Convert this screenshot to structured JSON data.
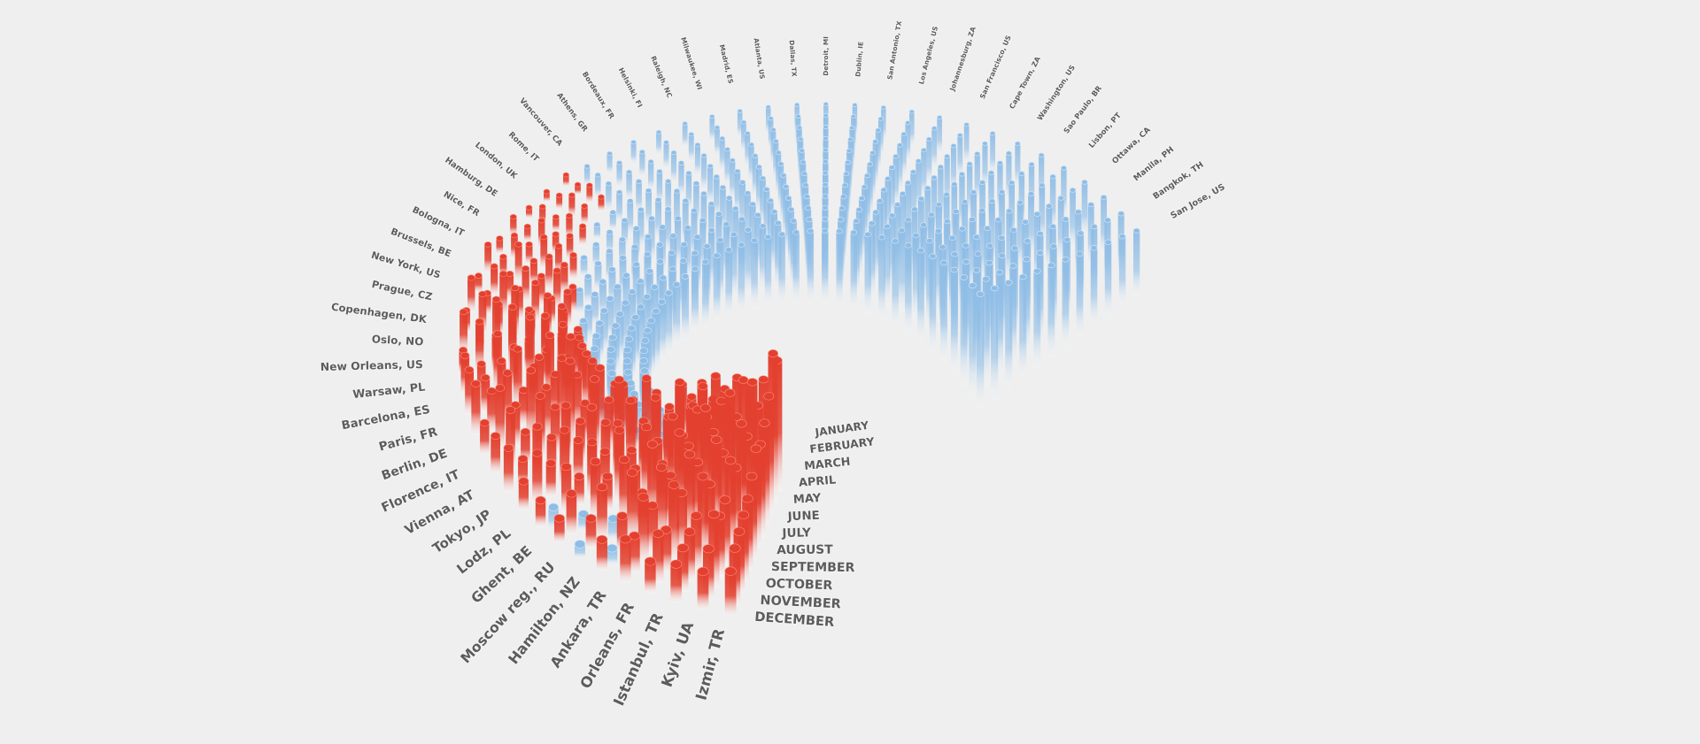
{
  "chart_data": {
    "type": "radial_bar3d",
    "cities": [
      "Izmir, TR",
      "Kyiv, UA",
      "Istanbul, TR",
      "Orleans, FR",
      "Ankara, TR",
      "Hamilton, NZ",
      "Moscow reg., RU",
      "Ghent, BE",
      "Lodz, PL",
      "Tokyo, JP",
      "Vienna, AT",
      "Florence, IT",
      "Berlin, DE",
      "Paris, FR",
      "Barcelona, ES",
      "Warsaw, PL",
      "New Orleans, US",
      "Oslo, NO",
      "Copenhagen, DK",
      "Prague, CZ",
      "New York, US",
      "Brussels, BE",
      "Bologna, IT",
      "Nice, FR",
      "Hamburg, DE",
      "London, UK",
      "Rome, IT",
      "Vancouver, CA",
      "Athens, GR",
      "Bordeaux, FR",
      "Helsinki, FI",
      "Raleigh, NC",
      "Milwaukee, WI",
      "Madrid, ES",
      "Atlanta, US",
      "Dallas, TX",
      "Detroit, MI",
      "Dublin, IE",
      "San Antonio, TX",
      "Los Angeles, US",
      "Johannesburg, ZA",
      "San Francisco, US",
      "Cape Town, ZA",
      "Washington, US",
      "Sao Paulo, BR",
      "Lisbon, PT",
      "Ottawa, CA",
      "Manila, PH",
      "Bangkok, TH",
      "San Jose, US"
    ],
    "months": [
      "JANUARY",
      "FEBRUARY",
      "MARCH",
      "APRIL",
      "MAY",
      "JUNE",
      "JULY",
      "AUGUST",
      "SEPTEMBER",
      "OCTOBER",
      "NOVEMBER",
      "DECEMBER"
    ],
    "values": [
      [
        44,
        50,
        38,
        32,
        28,
        30,
        24,
        20,
        18,
        16,
        14,
        10
      ],
      [
        36,
        30,
        42,
        26,
        34,
        22,
        28,
        18,
        16,
        20,
        12,
        8
      ],
      [
        30,
        38,
        28,
        40,
        22,
        30,
        18,
        24,
        14,
        12,
        10,
        8
      ],
      [
        34,
        26,
        32,
        24,
        36,
        20,
        26,
        16,
        22,
        10,
        12,
        6
      ],
      [
        28,
        36,
        24,
        30,
        20,
        28,
        16,
        22,
        12,
        18,
        8,
        10
      ],
      [
        22,
        30,
        26,
        18,
        28,
        14,
        24,
        10,
        20,
        8,
        -6,
        6
      ],
      [
        26,
        20,
        32,
        22,
        16,
        24,
        12,
        18,
        -8,
        14,
        6,
        -5
      ],
      [
        18,
        24,
        16,
        26,
        20,
        12,
        22,
        8,
        16,
        -6,
        10,
        4
      ],
      [
        20,
        14,
        22,
        12,
        24,
        18,
        10,
        16,
        6,
        12,
        -8,
        5
      ],
      [
        -8,
        -6,
        24,
        18,
        28,
        14,
        22,
        12,
        18,
        8,
        14,
        6
      ],
      [
        -10,
        -8,
        -6,
        20,
        16,
        26,
        12,
        20,
        10,
        16,
        6,
        12
      ],
      [
        -12,
        -10,
        -8,
        16,
        24,
        12,
        30,
        14,
        20,
        8,
        18,
        10
      ],
      [
        -14,
        -12,
        -10,
        -8,
        22,
        18,
        26,
        16,
        24,
        12,
        20,
        8
      ],
      [
        -16,
        -14,
        -12,
        -10,
        20,
        28,
        14,
        22,
        10,
        18,
        12,
        16
      ],
      [
        -18,
        -16,
        -14,
        -12,
        18,
        14,
        24,
        12,
        20,
        16,
        10,
        14
      ],
      [
        -20,
        -18,
        -16,
        -12,
        16,
        22,
        12,
        26,
        14,
        20,
        8,
        12
      ],
      [
        -22,
        -20,
        -18,
        -14,
        14,
        12,
        20,
        10,
        24,
        12,
        18,
        6
      ],
      [
        -24,
        -22,
        -20,
        -16,
        -12,
        18,
        10,
        16,
        12,
        20,
        8,
        14
      ],
      [
        -24,
        -22,
        -20,
        -18,
        -14,
        10,
        16,
        8,
        18,
        10,
        14,
        6
      ],
      [
        -26,
        -24,
        -22,
        -18,
        -14,
        12,
        8,
        14,
        10,
        16,
        6,
        12
      ],
      [
        -26,
        -24,
        -22,
        -20,
        -16,
        8,
        14,
        10,
        12,
        8,
        10,
        4
      ],
      [
        -28,
        -26,
        -24,
        -20,
        -16,
        -12,
        10,
        12,
        8,
        14,
        6,
        10
      ],
      [
        -28,
        -26,
        -24,
        -22,
        -18,
        -14,
        8,
        10,
        12,
        6,
        8,
        4
      ],
      [
        -30,
        -28,
        -26,
        -22,
        -18,
        -14,
        -10,
        8,
        6,
        10,
        4,
        6
      ],
      [
        -30,
        -28,
        -26,
        -24,
        -20,
        -16,
        -12,
        6,
        8,
        4,
        6,
        2
      ],
      [
        -32,
        -30,
        -28,
        -24,
        -20,
        -16,
        -12,
        -8,
        6,
        8,
        4,
        2
      ],
      [
        -32,
        -30,
        -28,
        -26,
        -22,
        -18,
        -14,
        -10,
        4,
        6,
        2,
        3
      ],
      [
        -34,
        -32,
        -30,
        -28,
        -26,
        -24,
        -22,
        -20,
        -18,
        -16,
        -14,
        -12
      ],
      [
        -34,
        -33,
        -31,
        -29,
        -27,
        -25,
        -23,
        -21,
        -19,
        -17,
        -15,
        -13
      ],
      [
        -35,
        -33,
        -32,
        -30,
        -28,
        -26,
        -24,
        -22,
        -20,
        -18,
        -16,
        -14
      ],
      [
        -36,
        -34,
        -32,
        -31,
        -29,
        -27,
        -25,
        -23,
        -21,
        -19,
        -17,
        -15
      ],
      [
        -36,
        -35,
        -33,
        -31,
        -30,
        -28,
        -26,
        -24,
        -22,
        -20,
        -18,
        -16
      ],
      [
        -37,
        -35,
        -34,
        -32,
        -30,
        -29,
        -27,
        -25,
        -23,
        -21,
        -19,
        -17
      ],
      [
        -38,
        -36,
        -34,
        -33,
        -31,
        -29,
        -28,
        -26,
        -24,
        -22,
        -20,
        -18
      ],
      [
        -38,
        -37,
        -35,
        -33,
        -32,
        -30,
        -28,
        -27,
        -25,
        -23,
        -21,
        -19
      ],
      [
        -39,
        -37,
        -36,
        -34,
        -32,
        -31,
        -29,
        -27,
        -26,
        -24,
        -22,
        -20
      ],
      [
        -40,
        -38,
        -36,
        -35,
        -33,
        -31,
        -30,
        -28,
        -26,
        -25,
        -23,
        -21
      ],
      [
        -41,
        -39,
        -37,
        -36,
        -34,
        -32,
        -31,
        -29,
        -27,
        -26,
        -24,
        -22
      ],
      [
        -42,
        -40,
        -38,
        -37,
        -35,
        -34,
        -32,
        -30,
        -29,
        -27,
        -25,
        -23
      ],
      [
        -43,
        -41,
        -40,
        -38,
        -36,
        -35,
        -33,
        -32,
        -30,
        -28,
        -26,
        -24
      ],
      [
        -44,
        -43,
        -41,
        -39,
        -38,
        -36,
        -34,
        -33,
        -31,
        -29,
        -27,
        -25
      ],
      [
        -46,
        -44,
        -42,
        -41,
        -39,
        -37,
        -36,
        -34,
        -32,
        -30,
        -28,
        -26
      ],
      [
        -47,
        -45,
        -44,
        -42,
        -40,
        -39,
        -37,
        -35,
        -33,
        -31,
        -29,
        -27
      ],
      [
        -48,
        -46,
        -45,
        -43,
        -42,
        -40,
        -38,
        -36,
        -34,
        -32,
        -30,
        -28
      ],
      [
        -50,
        -48,
        -46,
        -45,
        -43,
        -41,
        -40,
        -38,
        -36,
        -34,
        -32,
        -30
      ],
      [
        -51,
        -49,
        -48,
        -46,
        -44,
        -43,
        -41,
        -39,
        -37,
        -35,
        -33,
        -31
      ],
      [
        -52,
        -51,
        -49,
        -47,
        -46,
        -44,
        -42,
        -40,
        -38,
        -36,
        -34,
        -32
      ],
      [
        -54,
        -52,
        -50,
        -49,
        -47,
        -45,
        -43,
        -41,
        -39,
        -37,
        -35,
        -33
      ],
      [
        -55,
        -53,
        -52,
        -50,
        -48,
        -46,
        -44,
        -42,
        -40,
        -38,
        -36,
        -34
      ],
      [
        -56,
        -55,
        -53,
        -51,
        -49,
        -47,
        -45,
        -43,
        -41,
        -39,
        -37,
        -35
      ]
    ],
    "colors": {
      "positive": "#e3402f",
      "negative": "#8fbde6"
    }
  }
}
